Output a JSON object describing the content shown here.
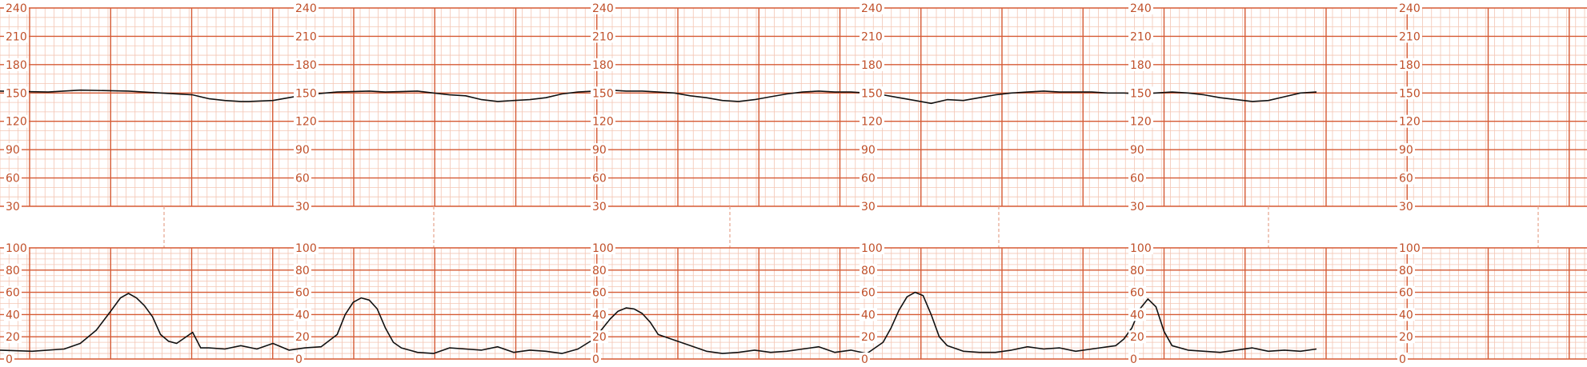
{
  "chart_data": [
    {
      "type": "line",
      "name": "fetal-heart-rate",
      "ylim": [
        30,
        240
      ],
      "yticks": [
        "240",
        "210",
        "180",
        "150",
        "120",
        "90",
        "60",
        "30"
      ],
      "x_unit_note": "",
      "series": [
        {
          "x": [
            0,
            6,
            10,
            16,
            20,
            24,
            26,
            28,
            30,
            31,
            34,
            38,
            42,
            46,
            48,
            52,
            54,
            56,
            58,
            60,
            62,
            64,
            66,
            68,
            70,
            72,
            74,
            76,
            78,
            80,
            82,
            84,
            86,
            88,
            90,
            92,
            94,
            96,
            98,
            100,
            102,
            104,
            106,
            108,
            110,
            112,
            114,
            116,
            118,
            120,
            122,
            124,
            126,
            128,
            130,
            132,
            134,
            136,
            138,
            140,
            142,
            144,
            146,
            148,
            150,
            152,
            154,
            156,
            158,
            160,
            162,
            164
          ],
          "values": [
            152,
            151,
            153,
            152,
            150,
            148,
            144,
            142,
            141,
            141,
            142,
            148,
            151,
            152,
            151,
            152,
            150,
            148,
            147,
            143,
            141,
            142,
            143,
            145,
            149,
            151,
            152,
            153,
            152,
            152,
            151,
            150,
            147,
            145,
            142,
            141,
            143,
            146,
            149,
            151,
            152,
            151,
            151,
            150,
            148,
            145,
            142,
            139,
            143,
            142,
            145,
            148,
            150,
            151,
            152,
            151,
            151,
            151,
            150,
            150,
            149,
            150,
            151,
            150,
            148,
            145,
            143,
            141,
            142,
            146,
            150,
            151
          ]
        }
      ]
    },
    {
      "type": "line",
      "name": "uterine-activity",
      "ylim": [
        0,
        100
      ],
      "yticks": [
        "100",
        "80",
        "60",
        "40",
        "20",
        "0"
      ],
      "series": [
        {
          "x": [
            0,
            4,
            8,
            10,
            12,
            14,
            15,
            16,
            17,
            18,
            19,
            20,
            21,
            22,
            24,
            25,
            26,
            28,
            30,
            32,
            34,
            36,
            38,
            40,
            42,
            43,
            44,
            45,
            46,
            47,
            48,
            49,
            50,
            51,
            52,
            54,
            56,
            58,
            60,
            62,
            64,
            66,
            68,
            70,
            72,
            74,
            76,
            77,
            78,
            79,
            80,
            81,
            82,
            84,
            86,
            88,
            90,
            92,
            94,
            96,
            98,
            100,
            102,
            104,
            106,
            108,
            110,
            111,
            112,
            113,
            114,
            115,
            116,
            117,
            118,
            120,
            122,
            124,
            126,
            128,
            130,
            132,
            134,
            136,
            138,
            139,
            140,
            141,
            142,
            143,
            144,
            145,
            146,
            148,
            150,
            152,
            154,
            156,
            158,
            160,
            162,
            164
          ],
          "values": [
            8,
            7,
            9,
            14,
            26,
            45,
            55,
            59,
            55,
            48,
            38,
            22,
            16,
            14,
            24,
            10,
            10,
            9,
            12,
            9,
            14,
            8,
            10,
            11,
            22,
            40,
            51,
            55,
            53,
            45,
            28,
            15,
            10,
            8,
            6,
            5,
            10,
            9,
            8,
            11,
            6,
            8,
            7,
            5,
            9,
            18,
            36,
            43,
            46,
            45,
            41,
            33,
            22,
            17,
            12,
            7,
            5,
            6,
            8,
            6,
            7,
            9,
            11,
            6,
            8,
            5,
            15,
            28,
            44,
            56,
            60,
            57,
            40,
            20,
            12,
            7,
            6,
            6,
            8,
            11,
            9,
            10,
            7,
            9,
            11,
            12,
            18,
            28,
            45,
            54,
            47,
            25,
            12,
            8,
            7,
            6,
            8,
            10,
            7,
            8,
            7,
            9
          ]
        }
      ]
    }
  ],
  "colors": {
    "minor_grid": "#f3c6b4",
    "major_grid": "#d55a34",
    "text": "#c0502a",
    "trace": "#111111",
    "dashed": "#e7a48c"
  }
}
